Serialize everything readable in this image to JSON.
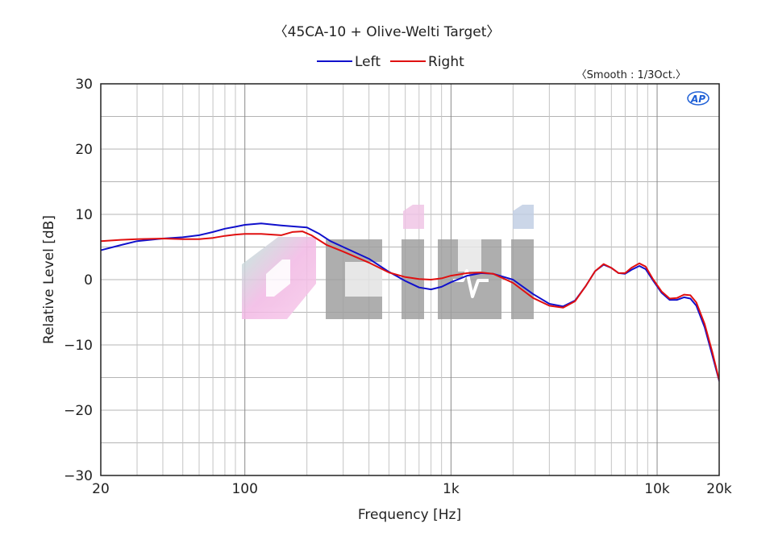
{
  "chart_data": {
    "type": "line",
    "title": "〈45CA-10 + Olive-Welti Target〉",
    "note": "〈Smooth : 1/3Oct.〉",
    "badge": "AP",
    "watermark": "cihi",
    "xlabel": "Frequency [Hz]",
    "ylabel": "Relative Level [dB]",
    "x_scale": "log",
    "xlim": [
      20,
      20000
    ],
    "ylim": [
      -30,
      30
    ],
    "x_ticks": [
      {
        "value": 20,
        "label": "20"
      },
      {
        "value": 100,
        "label": "100"
      },
      {
        "value": 1000,
        "label": "1k"
      },
      {
        "value": 10000,
        "label": "10k"
      },
      {
        "value": 20000,
        "label": "20k"
      }
    ],
    "y_ticks": [
      {
        "value": 30,
        "label": "30"
      },
      {
        "value": 20,
        "label": "20"
      },
      {
        "value": 10,
        "label": "10"
      },
      {
        "value": 0,
        "label": "0"
      },
      {
        "value": -10,
        "label": "−10"
      },
      {
        "value": -20,
        "label": "−20"
      },
      {
        "value": -30,
        "label": "−30"
      }
    ],
    "grid": true,
    "legend_position": "top-center",
    "series": [
      {
        "name": "Left",
        "color": "#1010cc",
        "points": [
          [
            20,
            4.5
          ],
          [
            25,
            5.3
          ],
          [
            30,
            5.9
          ],
          [
            40,
            6.3
          ],
          [
            50,
            6.5
          ],
          [
            60,
            6.8
          ],
          [
            70,
            7.3
          ],
          [
            80,
            7.8
          ],
          [
            90,
            8.1
          ],
          [
            100,
            8.4
          ],
          [
            120,
            8.6
          ],
          [
            150,
            8.3
          ],
          [
            180,
            8.1
          ],
          [
            200,
            8.0
          ],
          [
            230,
            7.0
          ],
          [
            260,
            5.9
          ],
          [
            300,
            5.0
          ],
          [
            400,
            3.2
          ],
          [
            500,
            1.2
          ],
          [
            600,
            -0.2
          ],
          [
            700,
            -1.2
          ],
          [
            800,
            -1.5
          ],
          [
            900,
            -1.1
          ],
          [
            1000,
            -0.4
          ],
          [
            1200,
            0.6
          ],
          [
            1400,
            1.0
          ],
          [
            1600,
            0.9
          ],
          [
            2000,
            0.0
          ],
          [
            2500,
            -2.2
          ],
          [
            3000,
            -3.7
          ],
          [
            3500,
            -4.1
          ],
          [
            4000,
            -3.2
          ],
          [
            4500,
            -1.0
          ],
          [
            5000,
            1.3
          ],
          [
            5500,
            2.3
          ],
          [
            6000,
            1.8
          ],
          [
            6500,
            1.0
          ],
          [
            7000,
            0.9
          ],
          [
            7500,
            1.5
          ],
          [
            8200,
            2.1
          ],
          [
            8800,
            1.6
          ],
          [
            9500,
            0.0
          ],
          [
            10500,
            -2.0
          ],
          [
            11500,
            -3.1
          ],
          [
            12500,
            -3.1
          ],
          [
            13500,
            -2.7
          ],
          [
            14500,
            -2.9
          ],
          [
            15500,
            -4.0
          ],
          [
            17000,
            -7.3
          ],
          [
            18500,
            -11.5
          ],
          [
            20000,
            -15.5
          ]
        ]
      },
      {
        "name": "Right",
        "color": "#e01010",
        "points": [
          [
            20,
            5.9
          ],
          [
            25,
            6.1
          ],
          [
            30,
            6.2
          ],
          [
            40,
            6.3
          ],
          [
            50,
            6.2
          ],
          [
            60,
            6.2
          ],
          [
            70,
            6.4
          ],
          [
            80,
            6.7
          ],
          [
            90,
            6.9
          ],
          [
            100,
            7.0
          ],
          [
            120,
            7.0
          ],
          [
            150,
            6.8
          ],
          [
            170,
            7.3
          ],
          [
            190,
            7.4
          ],
          [
            210,
            6.8
          ],
          [
            250,
            5.3
          ],
          [
            300,
            4.3
          ],
          [
            400,
            2.6
          ],
          [
            500,
            1.1
          ],
          [
            600,
            0.4
          ],
          [
            700,
            0.1
          ],
          [
            800,
            0.0
          ],
          [
            900,
            0.2
          ],
          [
            1000,
            0.6
          ],
          [
            1200,
            1.0
          ],
          [
            1400,
            1.1
          ],
          [
            1600,
            0.9
          ],
          [
            2000,
            -0.5
          ],
          [
            2500,
            -2.8
          ],
          [
            3000,
            -4.0
          ],
          [
            3500,
            -4.3
          ],
          [
            4000,
            -3.3
          ],
          [
            4500,
            -1.0
          ],
          [
            5000,
            1.3
          ],
          [
            5500,
            2.4
          ],
          [
            6000,
            1.8
          ],
          [
            6500,
            1.0
          ],
          [
            7000,
            1.0
          ],
          [
            7500,
            1.8
          ],
          [
            8200,
            2.5
          ],
          [
            8800,
            2.0
          ],
          [
            9500,
            0.2
          ],
          [
            10500,
            -1.8
          ],
          [
            11500,
            -2.9
          ],
          [
            12500,
            -2.8
          ],
          [
            13500,
            -2.3
          ],
          [
            14500,
            -2.4
          ],
          [
            15500,
            -3.5
          ],
          [
            17000,
            -6.8
          ],
          [
            18500,
            -11.0
          ],
          [
            20000,
            -15.4
          ]
        ]
      }
    ]
  }
}
